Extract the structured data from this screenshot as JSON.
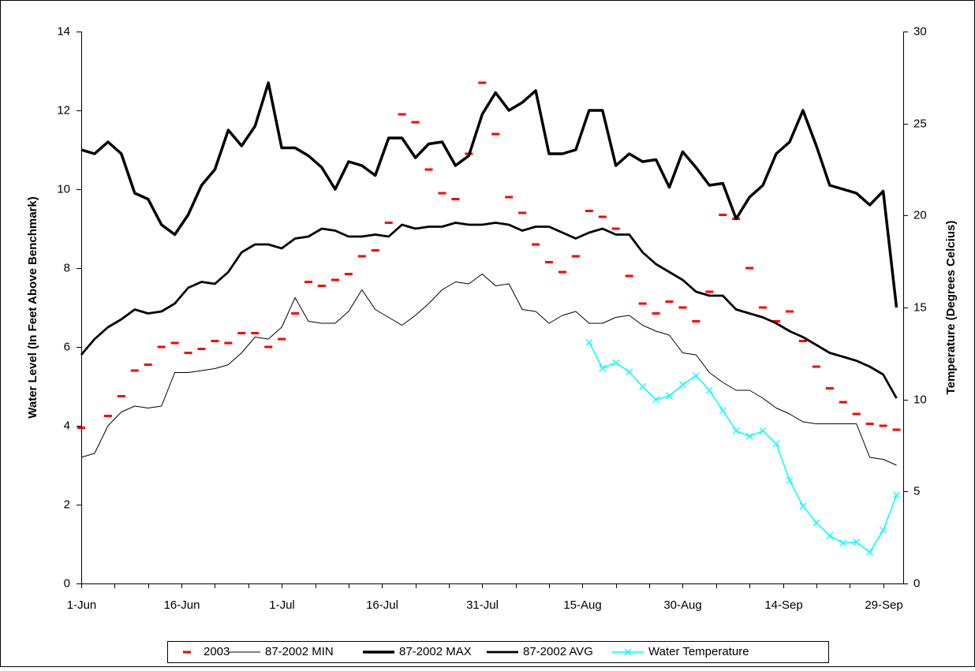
{
  "chart_data": {
    "type": "line",
    "x_label": null,
    "y_label": "Water Level (In Feet Above Benchmark)",
    "y2_label": "Temperature (Degrees Celcius)",
    "xlim": [
      0,
      123
    ],
    "xticks": [
      {
        "value": 0,
        "label": "1-Jun"
      },
      {
        "value": 15,
        "label": "16-Jun"
      },
      {
        "value": 30,
        "label": "1-Jul"
      },
      {
        "value": 45,
        "label": "16-Jul"
      },
      {
        "value": 60,
        "label": "31-Jul"
      },
      {
        "value": 75,
        "label": "15-Aug"
      },
      {
        "value": 90,
        "label": "30-Aug"
      },
      {
        "value": 105,
        "label": "14-Sep"
      },
      {
        "value": 120,
        "label": "29-Sep"
      }
    ],
    "xminorticks": [
      5,
      10,
      20,
      25,
      35,
      40,
      50,
      55,
      65,
      70,
      80,
      85,
      95,
      100,
      110,
      115
    ],
    "ylim": [
      0,
      14
    ],
    "yticks": [
      0,
      2,
      4,
      6,
      8,
      10,
      12,
      14
    ],
    "y2lim": [
      0,
      30
    ],
    "y2ticks": [
      0,
      5,
      10,
      15,
      20,
      25,
      30
    ],
    "grid": false,
    "legend": "bottom",
    "x": [
      0,
      2,
      4,
      6,
      8,
      10,
      12,
      14,
      16,
      18,
      20,
      22,
      24,
      26,
      28,
      30,
      32,
      34,
      36,
      38,
      40,
      42,
      44,
      46,
      48,
      50,
      52,
      54,
      56,
      58,
      60,
      62,
      64,
      66,
      68,
      70,
      72,
      74,
      76,
      78,
      80,
      82,
      84,
      86,
      88,
      90,
      92,
      94,
      96,
      98,
      100,
      102,
      104,
      106,
      108,
      110,
      112,
      114,
      116,
      118,
      120,
      122
    ],
    "series": [
      {
        "name": "2003",
        "color": "#ff0000",
        "marker": "dash",
        "line_width": 0,
        "values": [
          3.95,
          null,
          4.25,
          4.75,
          5.4,
          5.55,
          6.0,
          6.1,
          5.85,
          5.95,
          6.15,
          6.1,
          6.35,
          6.35,
          6.0,
          6.2,
          6.85,
          7.65,
          7.55,
          7.7,
          7.85,
          8.3,
          8.45,
          9.15,
          11.9,
          11.7,
          10.5,
          9.9,
          9.75,
          10.9,
          12.7,
          11.4,
          9.8,
          9.4,
          8.6,
          8.15,
          7.9,
          8.3,
          9.45,
          9.3,
          9.0,
          7.8,
          7.1,
          6.85,
          7.15,
          7.0,
          6.65,
          7.4,
          9.35,
          9.25,
          8.0,
          7.0,
          6.65,
          6.9,
          6.15,
          5.5,
          4.95,
          4.6,
          4.3,
          4.05,
          4.0,
          3.9
        ]
      },
      {
        "name": "87-2002 MIN",
        "color": "#000000",
        "marker": "none",
        "line_width": 1,
        "values": [
          3.2,
          3.3,
          4.0,
          4.35,
          4.5,
          4.45,
          4.5,
          5.35,
          5.35,
          5.4,
          5.45,
          5.55,
          5.85,
          6.25,
          6.2,
          6.5,
          7.25,
          6.65,
          6.6,
          6.6,
          6.9,
          7.45,
          6.95,
          6.75,
          6.55,
          6.8,
          7.1,
          7.45,
          7.65,
          7.6,
          7.85,
          7.55,
          7.6,
          6.95,
          6.9,
          6.6,
          6.8,
          6.9,
          6.6,
          6.6,
          6.75,
          6.8,
          6.55,
          6.4,
          6.3,
          5.85,
          5.8,
          5.35,
          5.1,
          4.9,
          4.9,
          4.7,
          4.45,
          4.3,
          4.1,
          4.05,
          4.05,
          4.05,
          4.05,
          3.2,
          3.15,
          3.0
        ]
      },
      {
        "name": "87-2002 MAX",
        "color": "#000000",
        "marker": "none",
        "line_width": 3.5,
        "values": [
          11.0,
          10.9,
          11.2,
          10.9,
          9.9,
          9.75,
          9.1,
          8.85,
          9.35,
          10.1,
          10.5,
          11.5,
          11.1,
          11.6,
          12.7,
          11.05,
          11.05,
          10.85,
          10.55,
          10.0,
          10.7,
          10.6,
          10.35,
          11.3,
          11.3,
          10.8,
          11.15,
          11.2,
          10.6,
          10.85,
          11.9,
          12.45,
          12.0,
          12.2,
          12.5,
          10.9,
          10.9,
          11.0,
          12.0,
          12.0,
          10.6,
          10.9,
          10.7,
          10.75,
          10.05,
          10.95,
          10.55,
          10.1,
          10.15,
          9.25,
          9.8,
          10.1,
          10.9,
          11.2,
          12.0,
          11.1,
          10.1,
          10.0,
          9.9,
          9.6,
          9.95,
          7.0
        ]
      },
      {
        "name": "87-2002 AVG",
        "color": "#000000",
        "marker": "none",
        "line_width": 2.8,
        "values": [
          5.8,
          6.2,
          6.5,
          6.7,
          6.95,
          6.85,
          6.9,
          7.1,
          7.5,
          7.65,
          7.6,
          7.9,
          8.4,
          8.6,
          8.6,
          8.5,
          8.75,
          8.8,
          9.0,
          8.95,
          8.8,
          8.8,
          8.85,
          8.8,
          9.1,
          9.0,
          9.05,
          9.05,
          9.15,
          9.1,
          9.1,
          9.15,
          9.1,
          8.95,
          9.05,
          9.05,
          8.9,
          8.75,
          8.9,
          9.0,
          8.85,
          8.85,
          8.4,
          8.1,
          7.9,
          7.7,
          7.4,
          7.3,
          7.3,
          6.95,
          6.85,
          6.75,
          6.6,
          6.4,
          6.25,
          6.05,
          5.85,
          5.75,
          5.65,
          5.5,
          5.3,
          4.7
        ]
      },
      {
        "name": "Water Temperature",
        "color": "#00ffff",
        "marker": "x",
        "line_width": 1.5,
        "axis": "y2",
        "values": [
          null,
          null,
          null,
          null,
          null,
          null,
          null,
          null,
          null,
          null,
          null,
          null,
          null,
          null,
          null,
          null,
          null,
          null,
          null,
          null,
          null,
          null,
          null,
          null,
          null,
          null,
          null,
          null,
          null,
          null,
          null,
          null,
          null,
          null,
          null,
          null,
          null,
          null,
          13.1,
          11.7,
          12.0,
          11.5,
          10.7,
          10.0,
          10.2,
          10.8,
          11.3,
          10.5,
          9.4,
          8.3,
          8.0,
          8.3,
          7.6,
          5.6,
          4.2,
          3.3,
          2.6,
          2.2,
          2.25,
          1.7,
          2.9,
          4.8
        ]
      }
    ]
  }
}
